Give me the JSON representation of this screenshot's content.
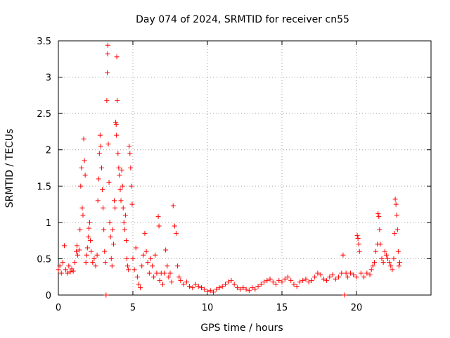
{
  "chart_data": {
    "type": "scatter",
    "title": "Day 074 of 2024, SRMTID for receiver cn55",
    "xlabel": "GPS time / hours",
    "ylabel": "SRMTID / TECUs",
    "xlim": [
      0,
      25
    ],
    "ylim": [
      0,
      3.5
    ],
    "xticks": [
      0,
      5,
      10,
      15,
      20
    ],
    "xtick_labels": [
      "0",
      "5",
      "10",
      "15",
      "20"
    ],
    "yticks": [
      0,
      0.5,
      1,
      1.5,
      2,
      2.5,
      3,
      3.5
    ],
    "ytick_labels": [
      "0",
      "0.5",
      "1",
      "1.5",
      "2",
      "2.5",
      "3",
      "3.5"
    ],
    "grid": true,
    "marker": "+",
    "color": "#ff0000",
    "series": [
      {
        "name": "SRMTID",
        "points": [
          [
            0.0,
            0.35
          ],
          [
            0.1,
            0.4
          ],
          [
            0.2,
            0.3
          ],
          [
            0.3,
            0.45
          ],
          [
            0.4,
            0.68
          ],
          [
            0.5,
            0.35
          ],
          [
            0.6,
            0.3
          ],
          [
            0.7,
            0.4
          ],
          [
            0.8,
            0.32
          ],
          [
            0.9,
            0.36
          ],
          [
            1.0,
            0.33
          ],
          [
            1.1,
            0.45
          ],
          [
            1.2,
            0.6
          ],
          [
            1.25,
            0.68
          ],
          [
            1.3,
            0.55
          ],
          [
            1.4,
            0.62
          ],
          [
            1.45,
            0.9
          ],
          [
            1.5,
            1.5
          ],
          [
            1.55,
            1.75
          ],
          [
            1.6,
            1.2
          ],
          [
            1.65,
            1.1
          ],
          [
            1.7,
            2.15
          ],
          [
            1.75,
            1.85
          ],
          [
            1.8,
            1.65
          ],
          [
            1.85,
            0.45
          ],
          [
            1.9,
            0.55
          ],
          [
            1.95,
            0.65
          ],
          [
            2.0,
            0.8
          ],
          [
            2.05,
            0.92
          ],
          [
            2.1,
            1.0
          ],
          [
            2.15,
            0.75
          ],
          [
            2.2,
            0.6
          ],
          [
            2.3,
            0.45
          ],
          [
            2.4,
            0.5
          ],
          [
            2.5,
            0.4
          ],
          [
            2.6,
            0.55
          ],
          [
            2.65,
            1.3
          ],
          [
            2.7,
            1.6
          ],
          [
            2.75,
            1.95
          ],
          [
            2.8,
            2.2
          ],
          [
            2.85,
            2.05
          ],
          [
            2.9,
            1.75
          ],
          [
            2.95,
            1.45
          ],
          [
            3.0,
            1.2
          ],
          [
            3.05,
            0.9
          ],
          [
            3.1,
            0.6
          ],
          [
            3.15,
            0.45
          ],
          [
            3.2,
            0.0
          ],
          [
            3.25,
            2.68
          ],
          [
            3.28,
            3.06
          ],
          [
            3.3,
            3.32
          ],
          [
            3.32,
            3.44
          ],
          [
            3.35,
            2.08
          ],
          [
            3.4,
            1.55
          ],
          [
            3.45,
            1.0
          ],
          [
            3.5,
            0.8
          ],
          [
            3.55,
            0.5
          ],
          [
            3.6,
            0.4
          ],
          [
            3.65,
            0.9
          ],
          [
            3.7,
            0.7
          ],
          [
            3.75,
            1.3
          ],
          [
            3.8,
            1.2
          ],
          [
            3.85,
            2.38
          ],
          [
            3.88,
            2.35
          ],
          [
            3.9,
            2.2
          ],
          [
            3.92,
            3.28
          ],
          [
            3.95,
            2.68
          ],
          [
            4.0,
            1.95
          ],
          [
            4.05,
            1.75
          ],
          [
            4.1,
            1.65
          ],
          [
            4.15,
            1.45
          ],
          [
            4.2,
            1.3
          ],
          [
            4.25,
            1.72
          ],
          [
            4.3,
            1.5
          ],
          [
            4.35,
            1.2
          ],
          [
            4.4,
            1.0
          ],
          [
            4.45,
            0.9
          ],
          [
            4.5,
            1.1
          ],
          [
            4.55,
            0.75
          ],
          [
            4.6,
            0.5
          ],
          [
            4.65,
            0.4
          ],
          [
            4.7,
            0.35
          ],
          [
            4.75,
            2.05
          ],
          [
            4.8,
            1.95
          ],
          [
            4.85,
            1.75
          ],
          [
            4.9,
            1.5
          ],
          [
            4.95,
            1.25
          ],
          [
            5.0,
            0.5
          ],
          [
            5.1,
            0.35
          ],
          [
            5.2,
            0.65
          ],
          [
            5.3,
            0.25
          ],
          [
            5.4,
            0.15
          ],
          [
            5.5,
            0.1
          ],
          [
            5.6,
            0.4
          ],
          [
            5.7,
            0.55
          ],
          [
            5.8,
            0.85
          ],
          [
            5.9,
            0.6
          ],
          [
            6.0,
            0.45
          ],
          [
            6.1,
            0.3
          ],
          [
            6.2,
            0.5
          ],
          [
            6.3,
            0.4
          ],
          [
            6.4,
            0.25
          ],
          [
            6.5,
            0.55
          ],
          [
            6.6,
            0.3
          ],
          [
            6.7,
            1.08
          ],
          [
            6.75,
            0.95
          ],
          [
            6.8,
            0.2
          ],
          [
            6.9,
            0.3
          ],
          [
            7.0,
            0.15
          ],
          [
            7.1,
            0.3
          ],
          [
            7.2,
            0.62
          ],
          [
            7.3,
            0.4
          ],
          [
            7.4,
            0.25
          ],
          [
            7.5,
            0.3
          ],
          [
            7.6,
            0.18
          ],
          [
            7.7,
            1.23
          ],
          [
            7.8,
            0.95
          ],
          [
            7.9,
            0.85
          ],
          [
            8.0,
            0.4
          ],
          [
            8.1,
            0.25
          ],
          [
            8.2,
            0.2
          ],
          [
            8.4,
            0.15
          ],
          [
            8.6,
            0.18
          ],
          [
            8.8,
            0.12
          ],
          [
            9.0,
            0.1
          ],
          [
            9.2,
            0.15
          ],
          [
            9.4,
            0.12
          ],
          [
            9.6,
            0.1
          ],
          [
            9.8,
            0.08
          ],
          [
            10.0,
            0.05
          ],
          [
            10.2,
            0.06
          ],
          [
            10.4,
            0.04
          ],
          [
            10.6,
            0.08
          ],
          [
            10.8,
            0.1
          ],
          [
            11.0,
            0.12
          ],
          [
            11.2,
            0.15
          ],
          [
            11.4,
            0.18
          ],
          [
            11.6,
            0.2
          ],
          [
            11.8,
            0.15
          ],
          [
            12.0,
            0.1
          ],
          [
            12.2,
            0.08
          ],
          [
            12.4,
            0.1
          ],
          [
            12.6,
            0.08
          ],
          [
            12.8,
            0.06
          ],
          [
            13.0,
            0.1
          ],
          [
            13.2,
            0.08
          ],
          [
            13.4,
            0.12
          ],
          [
            13.6,
            0.15
          ],
          [
            13.8,
            0.18
          ],
          [
            14.0,
            0.2
          ],
          [
            14.2,
            0.22
          ],
          [
            14.4,
            0.18
          ],
          [
            14.6,
            0.15
          ],
          [
            14.8,
            0.2
          ],
          [
            15.0,
            0.18
          ],
          [
            15.2,
            0.22
          ],
          [
            15.4,
            0.25
          ],
          [
            15.6,
            0.2
          ],
          [
            15.8,
            0.15
          ],
          [
            16.0,
            0.12
          ],
          [
            16.2,
            0.18
          ],
          [
            16.4,
            0.2
          ],
          [
            16.6,
            0.22
          ],
          [
            16.8,
            0.18
          ],
          [
            17.0,
            0.2
          ],
          [
            17.2,
            0.25
          ],
          [
            17.4,
            0.3
          ],
          [
            17.6,
            0.28
          ],
          [
            17.8,
            0.22
          ],
          [
            18.0,
            0.2
          ],
          [
            18.2,
            0.25
          ],
          [
            18.4,
            0.28
          ],
          [
            18.6,
            0.22
          ],
          [
            18.8,
            0.25
          ],
          [
            19.0,
            0.3
          ],
          [
            19.1,
            0.55
          ],
          [
            19.2,
            0.0
          ],
          [
            19.3,
            0.3
          ],
          [
            19.4,
            0.25
          ],
          [
            19.6,
            0.3
          ],
          [
            19.8,
            0.28
          ],
          [
            20.0,
            0.25
          ],
          [
            20.05,
            0.82
          ],
          [
            20.1,
            0.78
          ],
          [
            20.15,
            0.7
          ],
          [
            20.2,
            0.6
          ],
          [
            20.3,
            0.3
          ],
          [
            20.5,
            0.25
          ],
          [
            20.7,
            0.3
          ],
          [
            20.9,
            0.28
          ],
          [
            21.0,
            0.35
          ],
          [
            21.1,
            0.4
          ],
          [
            21.2,
            0.45
          ],
          [
            21.3,
            0.6
          ],
          [
            21.4,
            0.7
          ],
          [
            21.45,
            1.12
          ],
          [
            21.5,
            1.08
          ],
          [
            21.55,
            0.9
          ],
          [
            21.6,
            0.7
          ],
          [
            21.7,
            0.5
          ],
          [
            21.8,
            0.45
          ],
          [
            21.9,
            0.6
          ],
          [
            22.0,
            0.55
          ],
          [
            22.1,
            0.5
          ],
          [
            22.2,
            0.45
          ],
          [
            22.3,
            0.4
          ],
          [
            22.4,
            0.35
          ],
          [
            22.5,
            0.5
          ],
          [
            22.55,
            0.85
          ],
          [
            22.6,
            1.32
          ],
          [
            22.65,
            1.25
          ],
          [
            22.7,
            1.1
          ],
          [
            22.75,
            0.9
          ],
          [
            22.8,
            0.6
          ],
          [
            22.85,
            0.4
          ],
          [
            22.9,
            0.45
          ]
        ]
      }
    ]
  }
}
